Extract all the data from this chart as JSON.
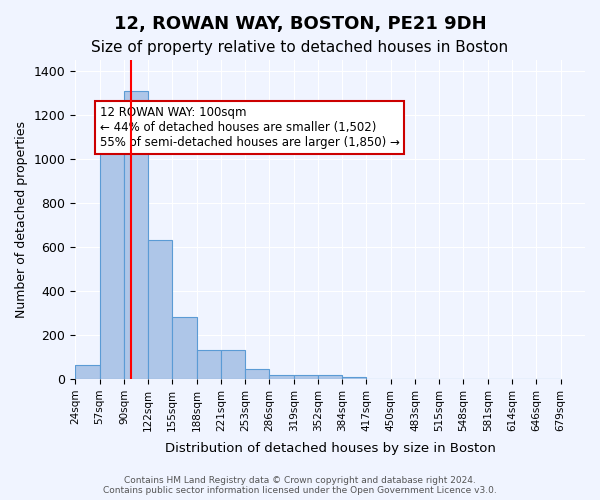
{
  "title1": "12, ROWAN WAY, BOSTON, PE21 9DH",
  "title2": "Size of property relative to detached houses in Boston",
  "xlabel": "Distribution of detached houses by size in Boston",
  "ylabel": "Number of detached properties",
  "bin_labels": [
    "24sqm",
    "57sqm",
    "90sqm",
    "122sqm",
    "155sqm",
    "188sqm",
    "221sqm",
    "253sqm",
    "286sqm",
    "319sqm",
    "352sqm",
    "384sqm",
    "417sqm",
    "450sqm",
    "483sqm",
    "515sqm",
    "548sqm",
    "581sqm",
    "614sqm",
    "646sqm",
    "679sqm"
  ],
  "bin_edges": [
    24,
    57,
    90,
    122,
    155,
    188,
    221,
    253,
    286,
    319,
    352,
    384,
    417,
    450,
    483,
    515,
    548,
    581,
    614,
    646,
    679
  ],
  "bar_heights": [
    65,
    1070,
    1310,
    630,
    280,
    130,
    130,
    45,
    20,
    20,
    20,
    10,
    0,
    0,
    0,
    0,
    0,
    0,
    0,
    0
  ],
  "bar_color": "#aec6e8",
  "bar_edge_color": "#5b9bd5",
  "red_line_x": 100,
  "annotation_text": "12 ROWAN WAY: 100sqm\n← 44% of detached houses are smaller (1,502)\n55% of semi-detached houses are larger (1,850) →",
  "annotation_box_color": "#ffffff",
  "annotation_box_edge": "#cc0000",
  "ylim": [
    0,
    1450
  ],
  "yticks": [
    0,
    200,
    400,
    600,
    800,
    1000,
    1200,
    1400
  ],
  "footer": "Contains HM Land Registry data © Crown copyright and database right 2024.\nContains public sector information licensed under the Open Government Licence v3.0.",
  "bg_color": "#f0f4ff",
  "grid_color": "#ffffff",
  "title1_fontsize": 13,
  "title2_fontsize": 11
}
